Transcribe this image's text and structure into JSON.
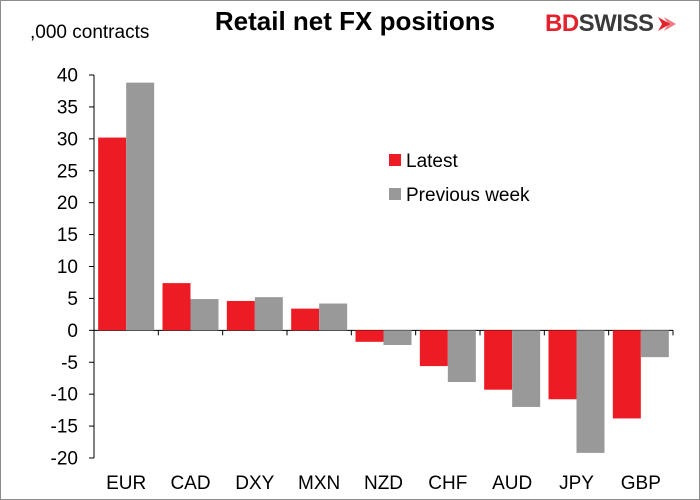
{
  "header": {
    "title": "Retail net FX positions",
    "y_unit_label": ",000 contracts",
    "logo": {
      "text_red": "BD",
      "text_dark": "SWISS",
      "icon": "chevron-arrow-icon",
      "brand_red": "#e3222d",
      "brand_dark": "#3a3a3a"
    }
  },
  "chart_data": {
    "type": "bar",
    "title": "Retail net FX positions",
    "ylabel": ",000 contracts",
    "xlabel": "",
    "categories": [
      "EUR",
      "CAD",
      "DXY",
      "MXN",
      "NZD",
      "CHF",
      "AUD",
      "JPY",
      "GBP"
    ],
    "series": [
      {
        "name": "Latest",
        "color": "#ed1c24",
        "values": [
          30.2,
          7.4,
          4.6,
          3.4,
          -1.8,
          -5.6,
          -9.3,
          -10.8,
          -13.8
        ]
      },
      {
        "name": "Previous week",
        "color": "#999999",
        "values": [
          38.8,
          4.9,
          5.2,
          4.2,
          -2.3,
          -8.1,
          -12.0,
          -19.2,
          -4.2
        ]
      }
    ],
    "ylim": [
      -20,
      40
    ],
    "yticks": [
      40,
      35,
      30,
      25,
      20,
      15,
      10,
      5,
      0,
      -5,
      -10,
      -15,
      -20
    ],
    "legend_position": "center-right",
    "grid": false
  }
}
